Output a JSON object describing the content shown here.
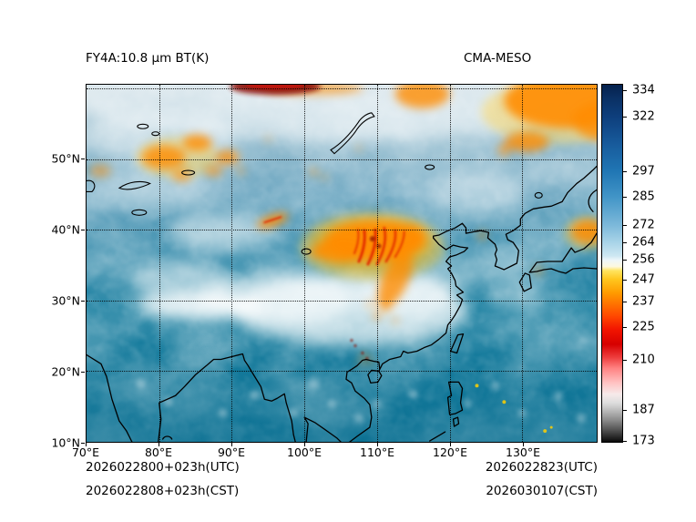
{
  "figure": {
    "title_left": "FY4A:10.8 μm BT(K)",
    "title_right": "CMA-MESO",
    "footer": {
      "left_line1": "2026022800+023h(UTC)",
      "left_line2": "2026022808+023h(CST)",
      "right_line1": "2026022823(UTC)",
      "right_line2": "2026030107(CST)"
    }
  },
  "chart_data": {
    "type": "heatmap",
    "title": "FY4A:10.8 μm BT(K)",
    "model_label": "CMA-MESO",
    "units": "K",
    "projection": "lat-lon map of East Asia / China region with coastlines and lakes",
    "grid": "dotted black graticule every 10 degrees",
    "x": {
      "range": [
        70,
        140.25
      ],
      "ticks": [
        {
          "v": 70,
          "label": "70°E"
        },
        {
          "v": 80,
          "label": "80°E"
        },
        {
          "v": 90,
          "label": "90°E"
        },
        {
          "v": 100,
          "label": "100°E"
        },
        {
          "v": 110,
          "label": "110°E"
        },
        {
          "v": 120,
          "label": "120°E"
        },
        {
          "v": 130,
          "label": "130°E"
        }
      ],
      "gridlines": [
        80,
        90,
        100,
        110,
        120,
        130
      ]
    },
    "y": {
      "range": [
        10,
        60.5
      ],
      "ticks": [
        {
          "v": 10,
          "label": "10°N"
        },
        {
          "v": 20,
          "label": "20°N"
        },
        {
          "v": 30,
          "label": "30°N"
        },
        {
          "v": 40,
          "label": "40°N"
        },
        {
          "v": 50,
          "label": "50°N"
        }
      ],
      "gridlines": [
        20,
        30,
        40,
        50,
        60
      ]
    },
    "colorbar": {
      "range": [
        172,
        337
      ],
      "ticks": [
        334,
        322,
        297,
        285,
        272,
        264,
        256,
        247,
        237,
        225,
        210,
        187,
        173
      ],
      "stops": [
        {
          "t": 337,
          "c": "#05214d"
        },
        {
          "t": 331,
          "c": "#0a3063"
        },
        {
          "t": 322,
          "c": "#0e3f7d"
        },
        {
          "t": 310,
          "c": "#175a9b"
        },
        {
          "t": 297,
          "c": "#2076b4"
        },
        {
          "t": 285,
          "c": "#4295c7"
        },
        {
          "t": 272,
          "c": "#7db9da"
        },
        {
          "t": 264,
          "c": "#a9d4e8"
        },
        {
          "t": 258,
          "c": "#cde7f2"
        },
        {
          "t": 256,
          "c": "#edf6fa"
        },
        {
          "t": 253,
          "c": "#fdf8e0"
        },
        {
          "t": 251,
          "c": "#ffe45e"
        },
        {
          "t": 247,
          "c": "#ffc61e"
        },
        {
          "t": 241,
          "c": "#ff9c00"
        },
        {
          "t": 237,
          "c": "#ff7d00"
        },
        {
          "t": 230,
          "c": "#ff4800"
        },
        {
          "t": 224,
          "c": "#f21500"
        },
        {
          "t": 217,
          "c": "#d60000"
        },
        {
          "t": 211,
          "c": "#ee3e3e"
        },
        {
          "t": 206,
          "c": "#ff8282"
        },
        {
          "t": 199,
          "c": "#ffc4c4"
        },
        {
          "t": 194,
          "c": "#f6eaea"
        },
        {
          "t": 190,
          "c": "#dddddd"
        },
        {
          "t": 187,
          "c": "#c0c0c0"
        },
        {
          "t": 182,
          "c": "#8b8b8b"
        },
        {
          "t": 177,
          "c": "#4c4c4c"
        },
        {
          "t": 172,
          "c": "#0a0a0a"
        }
      ]
    },
    "features": [
      {
        "area": "24-34N, 95-122E central/southern China",
        "signal": "extensive cloud shield, BT ~248-262 K (white)"
      },
      {
        "area": "33-41N, 103-117E north-central China",
        "signal": "deep convective system, BT ~210-240 K (orange with red cores/streaks)"
      },
      {
        "area": "40-42N, 93-97E",
        "signal": "small cold cloud streak ~235-245 K"
      },
      {
        "area": "48-53N, 78-92E",
        "signal": "scattered cold cloud patches ~237-247 K (orange)"
      },
      {
        "area": "59-60.5N, 92-104E top edge",
        "signal": "very cold band ~200-215 K (dark red)"
      },
      {
        "area": "55-60.5N, 113-140E",
        "signal": "cold cloud masses ~237-250 K (orange/yellow)"
      },
      {
        "area": "51-53N, 127-133E",
        "signal": "orange patch ~240 K"
      },
      {
        "area": "38-42N, 136-140E near right edge",
        "signal": "orange patch ~240 K"
      },
      {
        "area": "20-25N, 104-110E Gulf of Tonkin area",
        "signal": "small convective cells ~210-240 K (orange/red specks)"
      },
      {
        "area": "south of 20N oceans",
        "signal": "mostly clear, BT ~285-295 K (teal/blue)"
      },
      {
        "area": "Tibetan Plateau 28-36N, 78-98E",
        "signal": "BT ~250-260 K (white/pale)"
      },
      {
        "area": "45-60N band",
        "signal": "mottled pale blue/white, BT ~255-275 K"
      }
    ]
  }
}
